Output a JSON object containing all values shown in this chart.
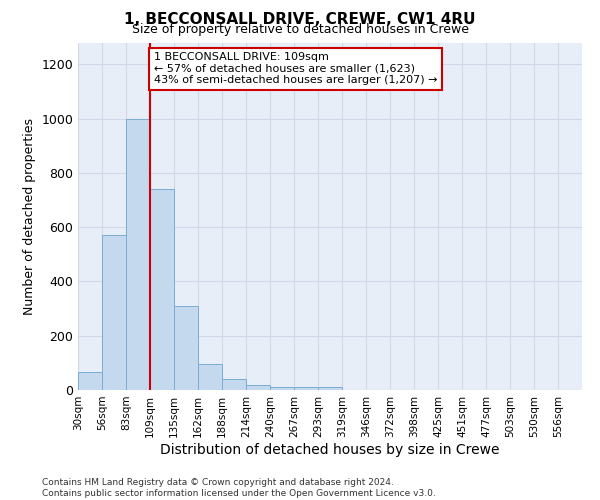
{
  "title": "1, BECCONSALL DRIVE, CREWE, CW1 4RU",
  "subtitle": "Size of property relative to detached houses in Crewe",
  "xlabel": "Distribution of detached houses by size in Crewe",
  "ylabel": "Number of detached properties",
  "bar_color": "#c5d9ee",
  "bar_edge_color": "#7aadd4",
  "bin_labels": [
    "30sqm",
    "56sqm",
    "83sqm",
    "109sqm",
    "135sqm",
    "162sqm",
    "188sqm",
    "214sqm",
    "240sqm",
    "267sqm",
    "293sqm",
    "319sqm",
    "346sqm",
    "372sqm",
    "398sqm",
    "425sqm",
    "451sqm",
    "477sqm",
    "503sqm",
    "530sqm",
    "556sqm"
  ],
  "bar_values": [
    65,
    570,
    1000,
    740,
    310,
    95,
    40,
    20,
    10,
    10,
    10,
    0,
    0,
    0,
    0,
    0,
    0,
    0,
    0,
    0,
    0
  ],
  "red_line_index": 3,
  "annotation_text": "1 BECCONSALL DRIVE: 109sqm\n← 57% of detached houses are smaller (1,623)\n43% of semi-detached houses are larger (1,207) →",
  "annotation_box_color": "#ffffff",
  "annotation_box_edge_color": "#cc0000",
  "red_line_color": "#cc0000",
  "ylim": [
    0,
    1280
  ],
  "yticks": [
    0,
    200,
    400,
    600,
    800,
    1000,
    1200
  ],
  "grid_color": "#d0d8e8",
  "background_color": "#e8eef8",
  "footer": "Contains HM Land Registry data © Crown copyright and database right 2024.\nContains public sector information licensed under the Open Government Licence v3.0."
}
